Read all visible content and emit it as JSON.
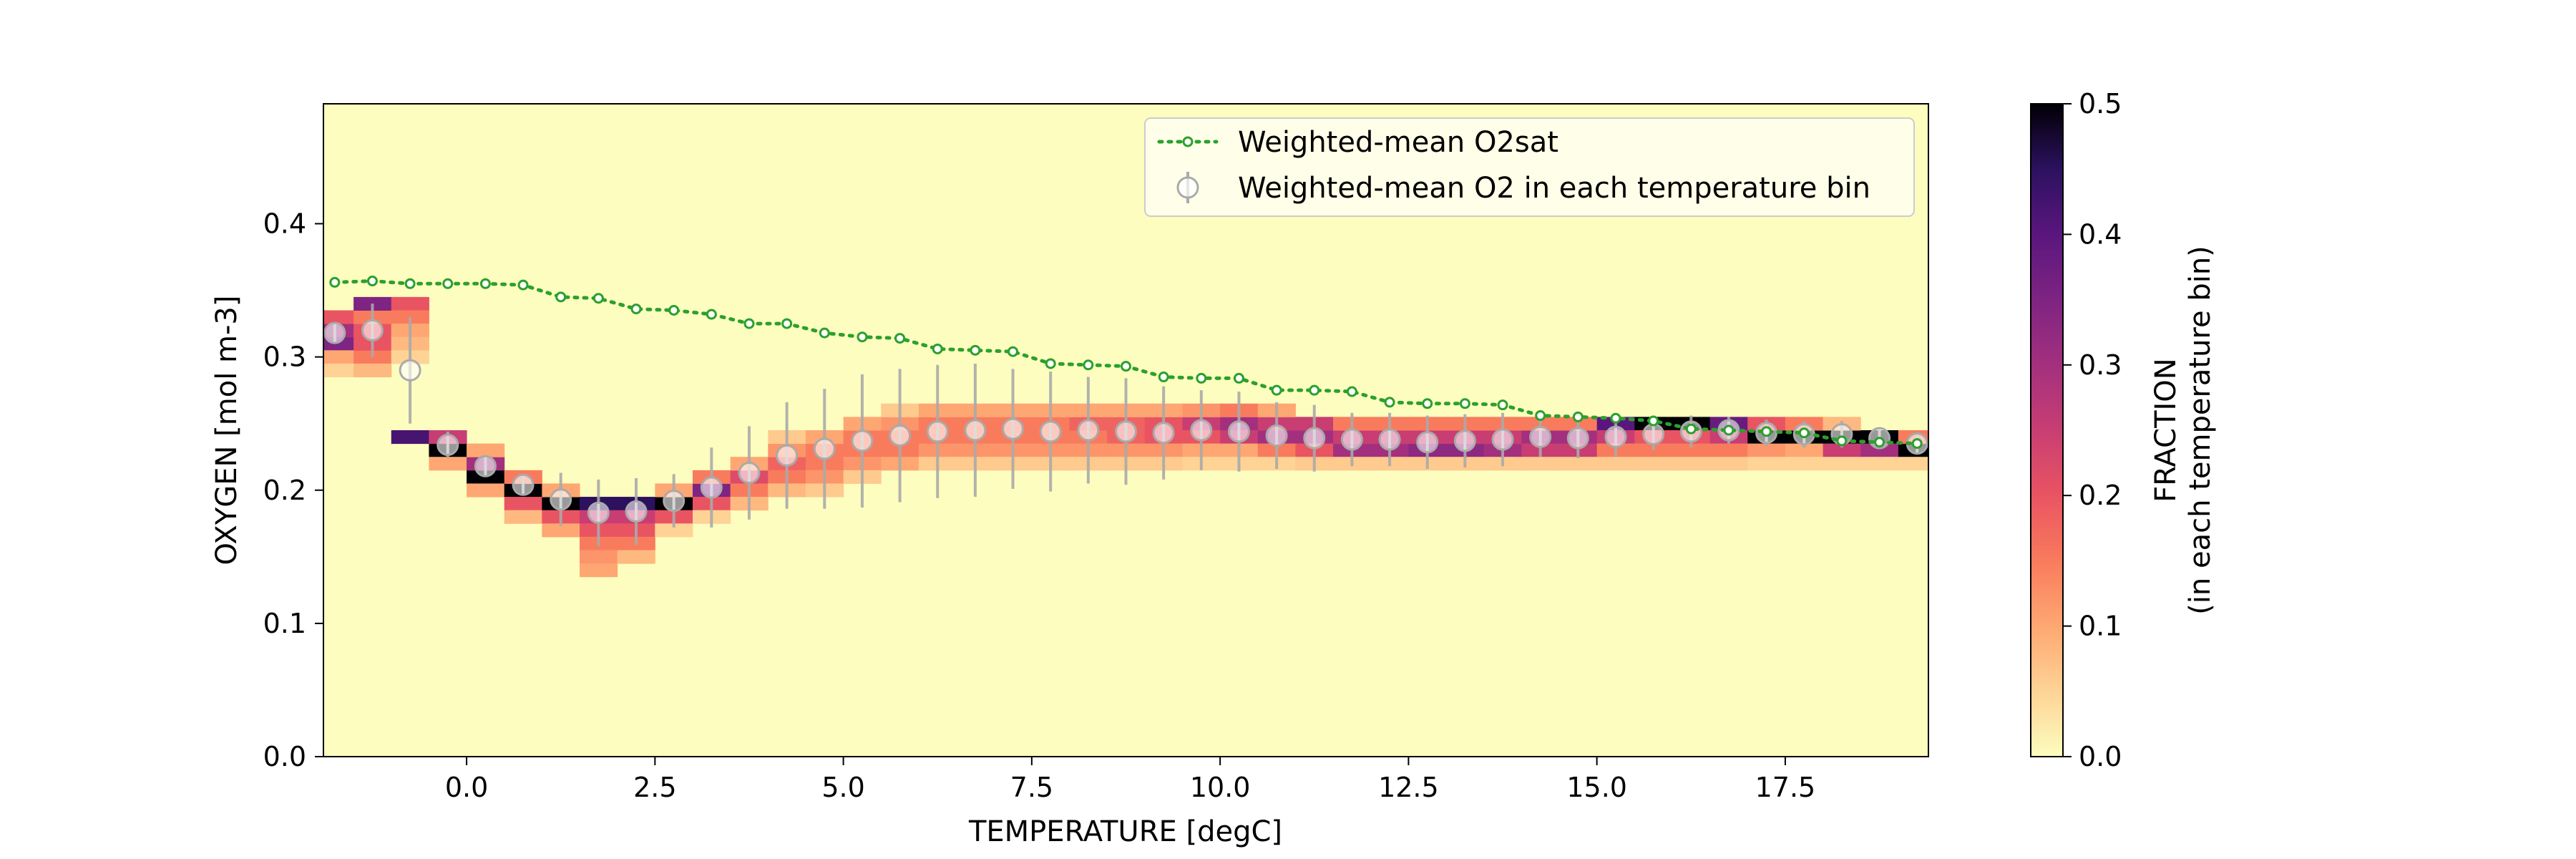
{
  "chart_data": {
    "type": "heatmap",
    "xlabel": "TEMPERATURE [degC]",
    "ylabel": "OXYGEN [mol m-3]",
    "xlim": [
      -1.9,
      19.4
    ],
    "ylim": [
      0.0,
      0.49
    ],
    "x_ticks": [
      "0.0",
      "2.5",
      "5.0",
      "7.5",
      "10.0",
      "12.5",
      "15.0",
      "17.5"
    ],
    "x_tick_values": [
      0,
      2.5,
      5,
      7.5,
      10,
      12.5,
      15,
      17.5
    ],
    "y_ticks": [
      "0.0",
      "0.1",
      "0.2",
      "0.3",
      "0.4"
    ],
    "y_tick_values": [
      0,
      0.1,
      0.2,
      0.3,
      0.4
    ],
    "colorbar": {
      "label_line1": "FRACTION",
      "label_line2": "(in each temperature bin)",
      "range": [
        0.0,
        0.5
      ],
      "ticks": [
        "0.0",
        "0.1",
        "0.2",
        "0.3",
        "0.4",
        "0.5"
      ],
      "tick_values": [
        0,
        0.1,
        0.2,
        0.3,
        0.4,
        0.5
      ],
      "colormap": "magma_r"
    },
    "heatmap": {
      "x_bin_width": 0.5,
      "y_bin_width": 0.01,
      "background_fraction": 0.0,
      "cells": [
        [
          -1.75,
          0.31,
          0.35
        ],
        [
          -1.75,
          0.32,
          0.3
        ],
        [
          -1.75,
          0.33,
          0.2
        ],
        [
          -1.75,
          0.3,
          0.1
        ],
        [
          -1.75,
          0.29,
          0.05
        ],
        [
          -1.25,
          0.32,
          0.2
        ],
        [
          -1.25,
          0.33,
          0.15
        ],
        [
          -1.25,
          0.34,
          0.35
        ],
        [
          -1.25,
          0.3,
          0.15
        ],
        [
          -1.25,
          0.31,
          0.2
        ],
        [
          -1.25,
          0.29,
          0.08
        ],
        [
          -0.75,
          0.34,
          0.2
        ],
        [
          -0.75,
          0.33,
          0.15
        ],
        [
          -0.75,
          0.32,
          0.1
        ],
        [
          -0.75,
          0.24,
          0.42
        ],
        [
          -0.75,
          0.31,
          0.08
        ],
        [
          -0.75,
          0.3,
          0.05
        ],
        [
          -0.25,
          0.23,
          0.5
        ],
        [
          -0.25,
          0.24,
          0.25
        ],
        [
          -0.25,
          0.22,
          0.1
        ],
        [
          0.25,
          0.21,
          0.5
        ],
        [
          0.25,
          0.22,
          0.3
        ],
        [
          0.25,
          0.2,
          0.1
        ],
        [
          0.25,
          0.23,
          0.1
        ],
        [
          0.75,
          0.2,
          0.5
        ],
        [
          0.75,
          0.19,
          0.2
        ],
        [
          0.75,
          0.21,
          0.15
        ],
        [
          0.75,
          0.18,
          0.08
        ],
        [
          1.25,
          0.19,
          0.5
        ],
        [
          1.25,
          0.18,
          0.2
        ],
        [
          1.25,
          0.17,
          0.1
        ],
        [
          1.25,
          0.2,
          0.1
        ],
        [
          1.75,
          0.19,
          0.45
        ],
        [
          1.75,
          0.18,
          0.25
        ],
        [
          1.75,
          0.17,
          0.2
        ],
        [
          1.75,
          0.16,
          0.15
        ],
        [
          1.75,
          0.15,
          0.12
        ],
        [
          1.75,
          0.14,
          0.1
        ],
        [
          2.25,
          0.19,
          0.45
        ],
        [
          2.25,
          0.18,
          0.25
        ],
        [
          2.25,
          0.17,
          0.2
        ],
        [
          2.25,
          0.16,
          0.15
        ],
        [
          2.25,
          0.15,
          0.08
        ],
        [
          2.75,
          0.19,
          0.5
        ],
        [
          2.75,
          0.18,
          0.2
        ],
        [
          2.75,
          0.2,
          0.1
        ],
        [
          2.75,
          0.17,
          0.05
        ],
        [
          3.25,
          0.2,
          0.35
        ],
        [
          3.25,
          0.19,
          0.2
        ],
        [
          3.25,
          0.21,
          0.15
        ],
        [
          3.25,
          0.18,
          0.05
        ],
        [
          3.75,
          0.21,
          0.22
        ],
        [
          3.75,
          0.2,
          0.15
        ],
        [
          3.75,
          0.22,
          0.1
        ],
        [
          3.75,
          0.19,
          0.08
        ],
        [
          4.25,
          0.22,
          0.18
        ],
        [
          4.25,
          0.21,
          0.15
        ],
        [
          4.25,
          0.23,
          0.12
        ],
        [
          4.25,
          0.2,
          0.08
        ],
        [
          4.25,
          0.24,
          0.06
        ],
        [
          4.75,
          0.22,
          0.15
        ],
        [
          4.75,
          0.23,
          0.15
        ],
        [
          4.75,
          0.21,
          0.12
        ],
        [
          4.75,
          0.24,
          0.1
        ],
        [
          4.75,
          0.2,
          0.06
        ],
        [
          5.25,
          0.23,
          0.15
        ],
        [
          5.25,
          0.24,
          0.15
        ],
        [
          5.25,
          0.22,
          0.12
        ],
        [
          5.25,
          0.25,
          0.1
        ],
        [
          5.25,
          0.21,
          0.06
        ],
        [
          5.75,
          0.23,
          0.15
        ],
        [
          5.75,
          0.24,
          0.15
        ],
        [
          5.75,
          0.25,
          0.12
        ],
        [
          5.75,
          0.22,
          0.1
        ],
        [
          5.75,
          0.26,
          0.06
        ],
        [
          6.25,
          0.24,
          0.15
        ],
        [
          6.25,
          0.25,
          0.15
        ],
        [
          6.25,
          0.23,
          0.12
        ],
        [
          6.25,
          0.26,
          0.1
        ],
        [
          6.25,
          0.22,
          0.06
        ],
        [
          6.75,
          0.24,
          0.15
        ],
        [
          6.75,
          0.25,
          0.15
        ],
        [
          6.75,
          0.23,
          0.12
        ],
        [
          6.75,
          0.26,
          0.1
        ],
        [
          6.75,
          0.22,
          0.06
        ],
        [
          7.25,
          0.24,
          0.15
        ],
        [
          7.25,
          0.25,
          0.15
        ],
        [
          7.25,
          0.23,
          0.12
        ],
        [
          7.25,
          0.26,
          0.1
        ],
        [
          7.25,
          0.22,
          0.06
        ],
        [
          7.75,
          0.24,
          0.15
        ],
        [
          7.75,
          0.25,
          0.15
        ],
        [
          7.75,
          0.23,
          0.12
        ],
        [
          7.75,
          0.26,
          0.1
        ],
        [
          7.75,
          0.22,
          0.06
        ],
        [
          8.25,
          0.24,
          0.15
        ],
        [
          8.25,
          0.25,
          0.18
        ],
        [
          8.25,
          0.23,
          0.12
        ],
        [
          8.25,
          0.26,
          0.1
        ],
        [
          8.25,
          0.22,
          0.06
        ],
        [
          8.75,
          0.24,
          0.18
        ],
        [
          8.75,
          0.25,
          0.18
        ],
        [
          8.75,
          0.23,
          0.12
        ],
        [
          8.75,
          0.26,
          0.1
        ],
        [
          8.75,
          0.22,
          0.06
        ],
        [
          9.25,
          0.24,
          0.2
        ],
        [
          9.25,
          0.25,
          0.2
        ],
        [
          9.25,
          0.23,
          0.12
        ],
        [
          9.25,
          0.26,
          0.1
        ],
        [
          9.25,
          0.22,
          0.06
        ],
        [
          9.75,
          0.25,
          0.25
        ],
        [
          9.75,
          0.24,
          0.2
        ],
        [
          9.75,
          0.26,
          0.12
        ],
        [
          9.75,
          0.23,
          0.1
        ],
        [
          9.75,
          0.22,
          0.05
        ],
        [
          10.25,
          0.25,
          0.3
        ],
        [
          10.25,
          0.24,
          0.25
        ],
        [
          10.25,
          0.26,
          0.15
        ],
        [
          10.25,
          0.23,
          0.1
        ],
        [
          10.25,
          0.22,
          0.05
        ],
        [
          10.75,
          0.24,
          0.3
        ],
        [
          10.75,
          0.25,
          0.25
        ],
        [
          10.75,
          0.23,
          0.15
        ],
        [
          10.75,
          0.26,
          0.1
        ],
        [
          10.75,
          0.22,
          0.05
        ],
        [
          11.25,
          0.24,
          0.3
        ],
        [
          11.25,
          0.25,
          0.25
        ],
        [
          11.25,
          0.23,
          0.2
        ],
        [
          11.25,
          0.22,
          0.06
        ],
        [
          11.75,
          0.23,
          0.3
        ],
        [
          11.75,
          0.24,
          0.25
        ],
        [
          11.75,
          0.25,
          0.15
        ],
        [
          11.75,
          0.22,
          0.06
        ],
        [
          12.25,
          0.23,
          0.3
        ],
        [
          12.25,
          0.24,
          0.25
        ],
        [
          12.25,
          0.25,
          0.15
        ],
        [
          12.25,
          0.22,
          0.06
        ],
        [
          12.75,
          0.23,
          0.33
        ],
        [
          12.75,
          0.24,
          0.25
        ],
        [
          12.75,
          0.25,
          0.15
        ],
        [
          12.75,
          0.22,
          0.06
        ],
        [
          13.25,
          0.23,
          0.33
        ],
        [
          13.25,
          0.24,
          0.25
        ],
        [
          13.25,
          0.25,
          0.15
        ],
        [
          13.25,
          0.22,
          0.06
        ],
        [
          13.75,
          0.23,
          0.3
        ],
        [
          13.75,
          0.24,
          0.25
        ],
        [
          13.75,
          0.25,
          0.15
        ],
        [
          13.75,
          0.22,
          0.06
        ],
        [
          14.25,
          0.24,
          0.3
        ],
        [
          14.25,
          0.23,
          0.25
        ],
        [
          14.25,
          0.25,
          0.15
        ],
        [
          14.25,
          0.22,
          0.06
        ],
        [
          14.75,
          0.24,
          0.3
        ],
        [
          14.75,
          0.23,
          0.25
        ],
        [
          14.75,
          0.25,
          0.15
        ],
        [
          14.75,
          0.22,
          0.06
        ],
        [
          15.25,
          0.25,
          0.4
        ],
        [
          15.25,
          0.24,
          0.25
        ],
        [
          15.25,
          0.23,
          0.15
        ],
        [
          15.25,
          0.22,
          0.06
        ],
        [
          15.75,
          0.25,
          0.5
        ],
        [
          15.75,
          0.24,
          0.2
        ],
        [
          15.75,
          0.23,
          0.15
        ],
        [
          15.75,
          0.22,
          0.06
        ],
        [
          16.25,
          0.25,
          0.5
        ],
        [
          16.25,
          0.24,
          0.2
        ],
        [
          16.25,
          0.23,
          0.15
        ],
        [
          16.25,
          0.22,
          0.06
        ],
        [
          16.75,
          0.25,
          0.38
        ],
        [
          16.75,
          0.24,
          0.25
        ],
        [
          16.75,
          0.23,
          0.15
        ],
        [
          16.75,
          0.22,
          0.06
        ],
        [
          17.25,
          0.24,
          0.5
        ],
        [
          17.25,
          0.25,
          0.2
        ],
        [
          17.25,
          0.23,
          0.12
        ],
        [
          17.25,
          0.22,
          0.05
        ],
        [
          17.75,
          0.24,
          0.5
        ],
        [
          17.75,
          0.25,
          0.15
        ],
        [
          17.75,
          0.23,
          0.1
        ],
        [
          17.75,
          0.22,
          0.05
        ],
        [
          18.25,
          0.24,
          0.5
        ],
        [
          18.25,
          0.23,
          0.25
        ],
        [
          18.25,
          0.25,
          0.08
        ],
        [
          18.25,
          0.22,
          0.05
        ],
        [
          18.75,
          0.24,
          0.5
        ],
        [
          18.75,
          0.23,
          0.3
        ],
        [
          18.75,
          0.22,
          0.05
        ],
        [
          19.25,
          0.23,
          0.5
        ],
        [
          19.25,
          0.24,
          0.15
        ],
        [
          19.25,
          0.22,
          0.05
        ]
      ]
    },
    "series": [
      {
        "name": "Weighted-mean O2sat",
        "style": "dotted-line-open-circles",
        "color": "#2ca02c",
        "x": [
          -1.75,
          -1.25,
          -0.75,
          -0.25,
          0.25,
          0.75,
          1.25,
          1.75,
          2.25,
          2.75,
          3.25,
          3.75,
          4.25,
          4.75,
          5.25,
          5.75,
          6.25,
          6.75,
          7.25,
          7.75,
          8.25,
          8.75,
          9.25,
          9.75,
          10.25,
          10.75,
          11.25,
          11.75,
          12.25,
          12.75,
          13.25,
          13.75,
          14.25,
          14.75,
          15.25,
          15.75,
          16.25,
          16.75,
          17.25,
          17.75,
          18.25,
          18.75,
          19.25
        ],
        "y": [
          0.356,
          0.357,
          0.355,
          0.355,
          0.355,
          0.354,
          0.345,
          0.344,
          0.336,
          0.335,
          0.332,
          0.325,
          0.325,
          0.318,
          0.315,
          0.314,
          0.306,
          0.305,
          0.304,
          0.295,
          0.294,
          0.293,
          0.285,
          0.284,
          0.284,
          0.275,
          0.275,
          0.274,
          0.266,
          0.265,
          0.265,
          0.264,
          0.256,
          0.255,
          0.254,
          0.252,
          0.246,
          0.245,
          0.244,
          0.243,
          0.237,
          0.236,
          0.235
        ]
      },
      {
        "name": "Weighted-mean O2 in each temperature bin",
        "style": "errorbar-circles",
        "color": "#aaaaaa",
        "x": [
          -1.75,
          -1.25,
          -0.75,
          -0.25,
          0.25,
          0.75,
          1.25,
          1.75,
          2.25,
          2.75,
          3.25,
          3.75,
          4.25,
          4.75,
          5.25,
          5.75,
          6.25,
          6.75,
          7.25,
          7.75,
          8.25,
          8.75,
          9.25,
          9.75,
          10.25,
          10.75,
          11.25,
          11.75,
          12.25,
          12.75,
          13.25,
          13.75,
          14.25,
          14.75,
          15.25,
          15.75,
          16.25,
          16.75,
          17.25,
          17.75,
          18.25,
          18.75,
          19.25
        ],
        "y": [
          0.318,
          0.32,
          0.29,
          0.234,
          0.218,
          0.204,
          0.193,
          0.183,
          0.184,
          0.192,
          0.202,
          0.213,
          0.226,
          0.231,
          0.237,
          0.241,
          0.244,
          0.245,
          0.246,
          0.244,
          0.245,
          0.244,
          0.243,
          0.245,
          0.244,
          0.241,
          0.239,
          0.238,
          0.238,
          0.236,
          0.237,
          0.238,
          0.24,
          0.239,
          0.24,
          0.242,
          0.244,
          0.245,
          0.243,
          0.242,
          0.242,
          0.239,
          0.235
        ],
        "yerr": [
          0.008,
          0.02,
          0.04,
          0.01,
          0.008,
          0.008,
          0.02,
          0.025,
          0.025,
          0.02,
          0.03,
          0.035,
          0.04,
          0.045,
          0.05,
          0.05,
          0.05,
          0.05,
          0.045,
          0.045,
          0.04,
          0.04,
          0.035,
          0.03,
          0.03,
          0.025,
          0.025,
          0.02,
          0.02,
          0.02,
          0.02,
          0.02,
          0.015,
          0.015,
          0.015,
          0.012,
          0.012,
          0.01,
          0.01,
          0.01,
          0.01,
          0.008,
          0.008
        ]
      }
    ],
    "legend": {
      "location": "upper-right",
      "entries": [
        "Weighted-mean O2sat",
        "Weighted-mean O2 in each temperature bin"
      ]
    },
    "grid": false
  }
}
